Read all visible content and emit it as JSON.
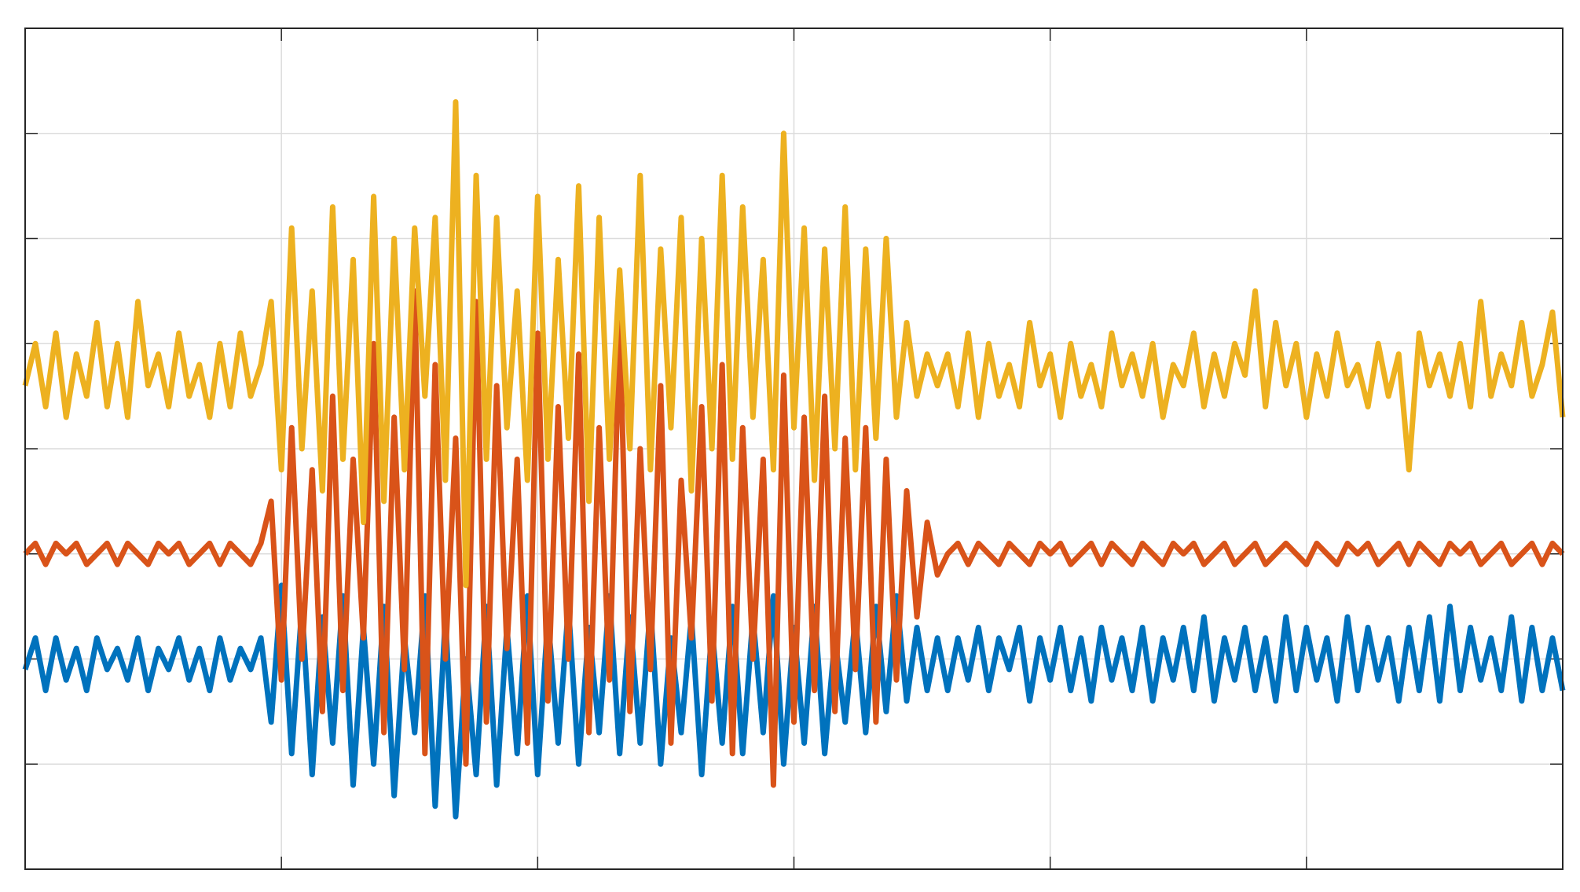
{
  "chart_data": {
    "type": "line",
    "x": [
      0,
      0.04,
      0.08,
      0.12,
      0.16,
      0.2,
      0.24,
      0.28,
      0.32,
      0.36,
      0.4,
      0.44,
      0.48,
      0.52,
      0.56,
      0.6,
      0.64,
      0.68,
      0.72,
      0.76,
      0.8,
      0.84,
      0.88,
      0.92,
      0.96,
      1,
      1.04,
      1.08,
      1.12,
      1.16,
      1.2,
      1.24,
      1.28,
      1.32,
      1.36,
      1.4,
      1.44,
      1.48,
      1.52,
      1.56,
      1.6,
      1.64,
      1.68,
      1.72,
      1.76,
      1.8,
      1.84,
      1.88,
      1.92,
      1.96,
      2,
      2.04,
      2.08,
      2.12,
      2.16,
      2.2,
      2.24,
      2.28,
      2.32,
      2.36,
      2.4,
      2.44,
      2.48,
      2.52,
      2.56,
      2.6,
      2.64,
      2.68,
      2.72,
      2.76,
      2.8,
      2.84,
      2.88,
      2.92,
      2.96,
      3,
      3.04,
      3.08,
      3.12,
      3.16,
      3.2,
      3.24,
      3.28,
      3.32,
      3.36,
      3.4,
      3.44,
      3.48,
      3.52,
      3.56,
      3.6,
      3.64,
      3.68,
      3.72,
      3.76,
      3.8,
      3.84,
      3.88,
      3.92,
      3.96,
      4,
      4.04,
      4.08,
      4.12,
      4.16,
      4.2,
      4.24,
      4.28,
      4.32,
      4.36,
      4.4,
      4.44,
      4.48,
      4.52,
      4.56,
      4.6,
      4.64,
      4.68,
      4.72,
      4.76,
      4.8,
      4.84,
      4.88,
      4.92,
      4.96,
      5,
      5.04,
      5.08,
      5.12,
      5.16,
      5.2,
      5.24,
      5.28,
      5.32,
      5.36,
      5.4,
      5.44,
      5.48,
      5.52,
      5.56,
      5.6,
      5.64,
      5.68,
      5.72,
      5.76,
      5.8,
      5.84,
      5.88,
      5.92,
      5.96,
      6
    ],
    "series": [
      {
        "color": "#0072bd",
        "values": [
          1.9,
          2.2,
          1.7,
          2.2,
          1.8,
          2.1,
          1.7,
          2.2,
          1.9,
          2.1,
          1.8,
          2.2,
          1.7,
          2.1,
          1.9,
          2.2,
          1.8,
          2.1,
          1.7,
          2.2,
          1.8,
          2.1,
          1.9,
          2.2,
          1.4,
          2.7,
          1.1,
          2.5,
          0.9,
          2.4,
          1.2,
          2.6,
          0.8,
          2.3,
          1.0,
          2.5,
          0.7,
          2.2,
          1.3,
          2.6,
          0.6,
          2.4,
          0.5,
          2.0,
          0.9,
          2.5,
          0.8,
          2.3,
          1.1,
          2.6,
          0.9,
          2.4,
          1.2,
          2.5,
          1.0,
          2.3,
          1.3,
          2.6,
          1.1,
          2.4,
          1.2,
          2.5,
          1.0,
          2.2,
          1.3,
          2.4,
          0.9,
          2.3,
          1.2,
          2.5,
          1.1,
          2.4,
          1.3,
          2.6,
          1.0,
          2.3,
          1.2,
          2.5,
          1.1,
          2.2,
          1.4,
          2.4,
          1.3,
          2.5,
          1.5,
          2.6,
          1.6,
          2.3,
          1.7,
          2.2,
          1.7,
          2.2,
          1.8,
          2.3,
          1.7,
          2.2,
          1.9,
          2.3,
          1.6,
          2.2,
          1.8,
          2.3,
          1.7,
          2.2,
          1.6,
          2.3,
          1.8,
          2.2,
          1.7,
          2.3,
          1.6,
          2.2,
          1.8,
          2.3,
          1.7,
          2.4,
          1.6,
          2.2,
          1.8,
          2.3,
          1.7,
          2.2,
          1.6,
          2.4,
          1.7,
          2.3,
          1.8,
          2.2,
          1.6,
          2.4,
          1.7,
          2.3,
          1.8,
          2.2,
          1.6,
          2.3,
          1.7,
          2.4,
          1.6,
          2.5,
          1.7,
          2.3,
          1.8,
          2.2,
          1.7,
          2.4,
          1.6,
          2.3,
          1.7,
          2.2,
          1.7
        ]
      },
      {
        "color": "#d95319",
        "values": [
          3.0,
          3.1,
          2.9,
          3.1,
          3.0,
          3.1,
          2.9,
          3.0,
          3.1,
          2.9,
          3.1,
          3.0,
          2.9,
          3.1,
          3.0,
          3.1,
          2.9,
          3.0,
          3.1,
          2.9,
          3.1,
          3.0,
          2.9,
          3.1,
          3.5,
          1.8,
          4.2,
          2.0,
          3.8,
          1.5,
          4.5,
          1.7,
          3.9,
          2.2,
          5.0,
          1.3,
          4.3,
          1.9,
          5.5,
          1.1,
          4.8,
          2.0,
          4.1,
          1.0,
          5.4,
          1.4,
          4.6,
          2.1,
          3.9,
          1.2,
          5.1,
          1.6,
          4.4,
          2.0,
          4.9,
          1.3,
          4.2,
          1.8,
          5.2,
          1.5,
          4.0,
          1.9,
          4.6,
          1.2,
          3.7,
          2.2,
          4.4,
          1.6,
          4.8,
          1.1,
          4.2,
          2.0,
          3.9,
          0.8,
          4.7,
          1.4,
          4.3,
          1.7,
          4.5,
          1.5,
          4.1,
          1.9,
          4.2,
          1.4,
          3.9,
          1.8,
          3.6,
          2.4,
          3.3,
          2.8,
          3.0,
          3.1,
          2.9,
          3.1,
          3.0,
          2.9,
          3.1,
          3.0,
          2.9,
          3.1,
          3.0,
          3.1,
          2.9,
          3.0,
          3.1,
          2.9,
          3.1,
          3.0,
          2.9,
          3.1,
          3.0,
          2.9,
          3.1,
          3.0,
          3.1,
          2.9,
          3.0,
          3.1,
          2.9,
          3.0,
          3.1,
          2.9,
          3.0,
          3.1,
          3.0,
          2.9,
          3.1,
          3.0,
          2.9,
          3.1,
          3.0,
          3.1,
          2.9,
          3.0,
          3.1,
          2.9,
          3.1,
          3.0,
          2.9,
          3.1,
          3.0,
          3.1,
          2.9,
          3.0,
          3.1,
          2.9,
          3.0,
          3.1,
          2.9,
          3.1,
          3.0
        ]
      },
      {
        "color": "#edb120",
        "values": [
          4.6,
          5.0,
          4.4,
          5.1,
          4.3,
          4.9,
          4.5,
          5.2,
          4.4,
          5.0,
          4.3,
          5.4,
          4.6,
          4.9,
          4.4,
          5.1,
          4.5,
          4.8,
          4.3,
          5.0,
          4.4,
          5.1,
          4.5,
          4.8,
          5.4,
          3.8,
          6.1,
          4.0,
          5.5,
          3.6,
          6.3,
          3.9,
          5.8,
          3.3,
          6.4,
          3.5,
          6.0,
          3.8,
          6.1,
          4.5,
          6.2,
          3.7,
          7.3,
          2.7,
          6.6,
          3.9,
          6.2,
          4.2,
          5.5,
          3.7,
          6.4,
          3.9,
          5.8,
          4.1,
          6.5,
          3.5,
          6.2,
          3.9,
          5.7,
          4.0,
          6.6,
          3.8,
          5.9,
          4.2,
          6.2,
          3.6,
          6.0,
          4.0,
          6.6,
          3.9,
          6.3,
          4.3,
          5.8,
          3.8,
          7.0,
          4.2,
          6.1,
          3.7,
          5.9,
          4.0,
          6.3,
          3.8,
          5.9,
          4.1,
          6.0,
          4.3,
          5.2,
          4.5,
          4.9,
          4.6,
          4.9,
          4.4,
          5.1,
          4.3,
          5.0,
          4.5,
          4.8,
          4.4,
          5.2,
          4.6,
          4.9,
          4.3,
          5.0,
          4.5,
          4.8,
          4.4,
          5.1,
          4.6,
          4.9,
          4.5,
          5.0,
          4.3,
          4.8,
          4.6,
          5.1,
          4.4,
          4.9,
          4.5,
          5.0,
          4.7,
          5.5,
          4.4,
          5.2,
          4.6,
          5.0,
          4.3,
          4.9,
          4.5,
          5.1,
          4.6,
          4.8,
          4.4,
          5.0,
          4.5,
          4.9,
          3.8,
          5.1,
          4.6,
          4.9,
          4.5,
          5.0,
          4.4,
          5.4,
          4.5,
          4.9,
          4.6,
          5.2,
          4.5,
          4.8,
          5.3,
          4.3
        ]
      }
    ],
    "xlim": [
      0,
      6
    ],
    "xticks": [
      0,
      1,
      2,
      3,
      4,
      5,
      6
    ],
    "ylim": [
      0,
      8
    ],
    "yticks": [
      0,
      1,
      2,
      3,
      4,
      5,
      6,
      7,
      8
    ],
    "grid": true
  }
}
